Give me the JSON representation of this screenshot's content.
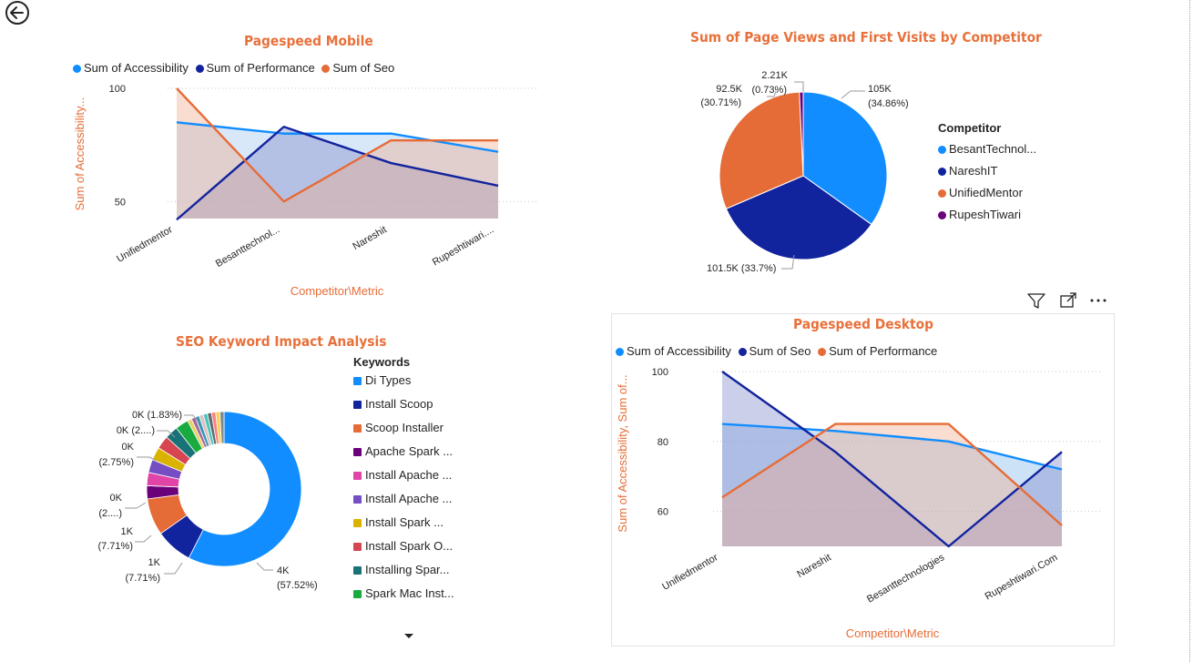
{
  "mobile": {
    "title": "Pagespeed Mobile",
    "legend": [
      {
        "name": "Sum of Accessibility",
        "color": "#118dff"
      },
      {
        "name": "Sum of Performance",
        "color": "#12239e"
      },
      {
        "name": "Sum of Seo",
        "color": "#e66c37"
      }
    ],
    "ylabel": "Sum of Accessibility...",
    "xlabel": "Competitor\\Metric"
  },
  "pie": {
    "title": "Sum of Page Views and First Visits by Competitor",
    "legend_title": "Competitor",
    "legend": [
      {
        "name": "BesantTechnol...",
        "color": "#118dff"
      },
      {
        "name": "NareshIT",
        "color": "#12239e"
      },
      {
        "name": "UnifiedMentor",
        "color": "#e66c37"
      },
      {
        "name": "RupeshTiwari",
        "color": "#6b007b"
      }
    ],
    "labels": {
      "besant_value": "105K",
      "besant_pct": "(34.86%)",
      "naresh": "101.5K (33.7%)",
      "unified_value": "92.5K",
      "unified_pct": "(30.71%)",
      "rupesh_value": "2.21K",
      "rupesh_pct": "(0.73%)"
    }
  },
  "donut": {
    "title": "SEO Keyword Impact Analysis",
    "legend_title": "Keywords",
    "legend": [
      {
        "name": "Di Types",
        "color": "#118dff"
      },
      {
        "name": "Install Scoop",
        "color": "#12239e"
      },
      {
        "name": "Scoop Installer",
        "color": "#e66c37"
      },
      {
        "name": "Apache Spark ...",
        "color": "#6b007b"
      },
      {
        "name": "Install Apache ...",
        "color": "#e044a7"
      },
      {
        "name": "Install Apache ...",
        "color": "#744ec2"
      },
      {
        "name": "Install Spark ...",
        "color": "#d9b300"
      },
      {
        "name": "Install Spark O...",
        "color": "#d64550"
      },
      {
        "name": "Installing Spar...",
        "color": "#197278"
      },
      {
        "name": "Spark Mac Inst...",
        "color": "#1aab40"
      }
    ],
    "labels": {
      "l1": "0K (1.83%)",
      "l2": "0K (2....)",
      "l3a": "0K",
      "l3b": "(2.75%)",
      "l4a": "0K",
      "l4b": "(2....)",
      "l5a": "1K",
      "l5b": "(7.71%)",
      "l6a": "1K",
      "l6b": "(7.71%)",
      "l7a": "4K",
      "l7b": "(57.52%)"
    }
  },
  "desktop": {
    "title": "Pagespeed Desktop",
    "legend": [
      {
        "name": "Sum of Accessibility",
        "color": "#118dff"
      },
      {
        "name": "Sum of Seo",
        "color": "#12239e"
      },
      {
        "name": "Sum of Performance",
        "color": "#e66c37"
      }
    ],
    "ylabel": "Sum of Accessibility, Sum of...",
    "xlabel": "Competitor\\Metric"
  },
  "chart_data": [
    {
      "type": "area",
      "title": "Pagespeed Mobile",
      "categories": [
        "Unifiedmentor",
        "Besanttechnol...",
        "Nareshit",
        "Rupeshtiwari...."
      ],
      "series": [
        {
          "name": "Sum of Accessibility",
          "color": "#118dff",
          "values": [
            85,
            80,
            80,
            72
          ]
        },
        {
          "name": "Sum of Performance",
          "color": "#12239e",
          "values": [
            42,
            83,
            67,
            57
          ]
        },
        {
          "name": "Sum of Seo",
          "color": "#e66c37",
          "values": [
            100,
            50,
            77,
            77
          ]
        }
      ],
      "yticks": [
        50,
        100
      ],
      "ylim": [
        42,
        100
      ],
      "xlabel": "Competitor\\Metric",
      "ylabel": "Sum of Accessibility..."
    },
    {
      "type": "pie",
      "title": "Sum of Page Views and First Visits by Competitor",
      "categories": [
        "BesantTechnol...",
        "NareshIT",
        "UnifiedMentor",
        "RupeshTiwari"
      ],
      "values": [
        105000,
        101500,
        92500,
        2210
      ],
      "percentages": [
        34.86,
        33.7,
        30.71,
        0.73
      ]
    },
    {
      "type": "pie",
      "title": "SEO Keyword Impact Analysis",
      "donut": true,
      "categories": [
        "Di Types",
        "Install Scoop",
        "Scoop Installer",
        "Apache Spark ...",
        "Install Apache ...",
        "Install Apache ...",
        "Install Spark ...",
        "Install Spark O...",
        "Installing Spar...",
        "Spark Mac Inst..."
      ],
      "percentages": [
        57.52,
        7.71,
        7.71,
        2.75,
        2.75,
        2.75,
        2.75,
        2.75,
        2.75,
        2.75
      ]
    },
    {
      "type": "area",
      "title": "Pagespeed Desktop",
      "categories": [
        "Unifiedmentor",
        "Nareshit",
        "Besanttechnologies",
        "Rupeshtiwari.Com"
      ],
      "series": [
        {
          "name": "Sum of Accessibility",
          "color": "#118dff",
          "values": [
            85,
            83,
            80,
            72
          ]
        },
        {
          "name": "Sum of Seo",
          "color": "#12239e",
          "values": [
            100,
            77,
            50,
            77
          ]
        },
        {
          "name": "Sum of Performance",
          "color": "#e66c37",
          "values": [
            64,
            85,
            85,
            56
          ]
        }
      ],
      "yticks": [
        60,
        80,
        100
      ],
      "ylim": [
        50,
        100
      ],
      "xlabel": "Competitor\\Metric",
      "ylabel": "Sum of Accessibility, Sum of..."
    }
  ]
}
